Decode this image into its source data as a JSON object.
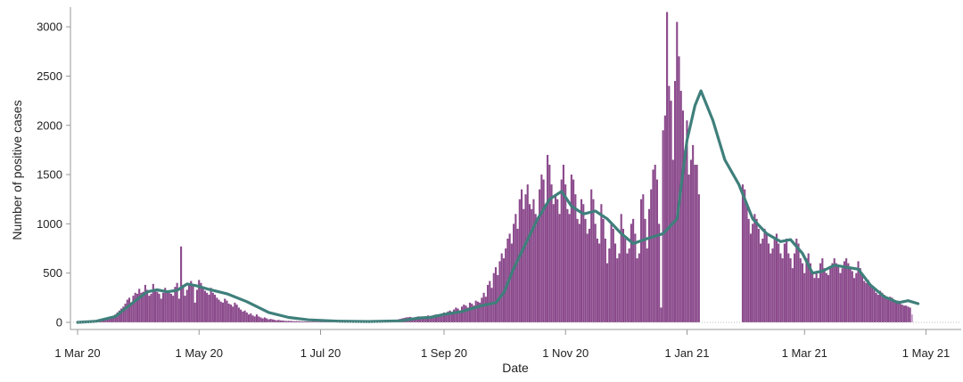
{
  "chart_data": {
    "type": "bar",
    "title": "",
    "xlabel": "Date",
    "ylabel": "Number of positive cases",
    "y_ticks": [
      0,
      500,
      1000,
      1500,
      2000,
      2500,
      3000
    ],
    "y_tick_labels": [
      "0",
      "500",
      "1000",
      "1500",
      "2000",
      "2500",
      "3000"
    ],
    "ylim": [
      0,
      3200
    ],
    "x_ticks": [
      "2020-03-01",
      "2020-05-01",
      "2020-07-01",
      "2020-09-01",
      "2020-11-01",
      "2021-01-01",
      "2021-03-01",
      "2021-05-01"
    ],
    "x_tick_labels": [
      "1 Mar 20",
      "1 May 20",
      "1 Jul 20",
      "1 Sep 20",
      "1 Nov 20",
      "1 Jan 21",
      "1 Mar 21",
      "1 May 21"
    ],
    "xlim": [
      "2020-03-01",
      "2021-05-03"
    ],
    "grid": false,
    "colors": {
      "bars": "#8b4a8c",
      "last_bar": "#c9a3cf",
      "moving_average": "#3f7f7b"
    },
    "daily_cases": [
      {
        "start": "2020-03-01",
        "values": [
          0,
          1,
          2,
          2,
          3,
          4,
          6,
          8,
          10,
          12,
          15,
          18,
          20,
          25,
          30,
          35,
          40,
          45,
          60,
          80,
          100,
          120,
          140,
          160,
          190,
          230,
          250,
          200,
          270,
          300,
          290,
          340,
          300,
          310,
          380,
          330,
          270,
          290,
          390,
          340,
          310,
          290,
          240,
          300,
          350,
          320,
          300,
          290,
          270,
          360,
          400,
          240,
          770,
          380,
          270,
          330,
          390,
          420,
          380,
          200,
          330,
          430,
          400,
          360,
          320,
          300,
          280,
          350,
          300,
          280,
          250,
          230,
          210,
          200,
          240,
          220,
          190,
          180,
          160,
          200,
          180,
          150,
          130,
          110,
          120,
          100,
          80,
          90,
          70,
          60,
          80,
          60,
          50,
          40,
          50,
          40
        ]
      },
      {
        "start": "2020-06-05",
        "values": [
          30,
          35,
          30,
          25,
          20,
          25,
          20,
          18,
          16,
          14,
          15,
          14,
          13,
          12,
          12,
          11,
          10,
          10,
          9,
          9,
          8,
          8,
          8,
          8,
          7,
          7,
          7,
          7,
          6,
          6,
          6,
          6,
          6,
          6,
          6,
          6,
          6,
          6,
          6,
          6,
          6,
          6,
          6,
          6,
          6,
          7,
          7,
          7,
          7,
          8,
          8,
          8,
          8,
          9,
          9,
          10,
          10,
          11,
          12,
          13,
          15,
          17,
          19,
          22,
          25,
          30,
          35,
          40,
          45,
          50,
          52,
          55,
          50,
          48,
          55,
          60,
          50,
          45,
          55,
          60,
          70,
          65,
          60,
          75,
          80,
          70,
          80,
          90,
          100,
          95
        ]
      },
      {
        "start": "2020-09-03",
        "values": [
          110,
          120,
          100,
          130,
          150,
          140,
          120,
          160,
          180,
          170,
          150,
          200,
          190,
          170,
          220,
          210,
          200,
          250,
          300,
          260,
          380,
          420,
          350,
          500,
          560,
          480,
          620,
          700,
          650,
          750,
          850,
          900,
          800,
          1000,
          1100,
          950,
          1250,
          1350,
          1150,
          1300,
          1400,
          1200,
          1150,
          1250,
          1100,
          1050,
          1350,
          1500,
          1450,
          1200,
          1700,
          1600,
          1400,
          1200,
          1300,
          1250,
          1100,
          1450,
          1600,
          1400,
          1150,
          1100,
          1500,
          1450,
          1300,
          1050,
          1000,
          1250,
          1200,
          1050,
          900,
          950,
          1350,
          1250,
          1000,
          850,
          800,
          1200,
          1050,
          850,
          600,
          750,
          1000,
          950,
          800,
          650,
          700,
          1100,
          950,
          850,
          700,
          750,
          1000,
          1050,
          900,
          650,
          700,
          1250,
          1300,
          1050,
          750,
          1150,
          1350,
          1550,
          1600,
          1450,
          1000,
          150,
          1950,
          2100,
          3150,
          2400,
          2250,
          1650,
          2450,
          3050,
          2700,
          2350,
          2150,
          1750,
          2050,
          1500,
          1650,
          1800,
          1600,
          1600,
          1300
        ]
      },
      {
        "start": "2021-01-29",
        "values": [
          1400,
          1350,
          1200,
          1050,
          900,
          1000,
          1100,
          1050,
          950,
          800,
          850,
          950,
          900,
          800,
          700,
          750,
          850,
          900,
          800,
          700,
          650,
          800,
          850,
          700,
          650,
          550,
          700,
          850,
          800,
          650,
          600,
          500,
          650,
          700,
          600,
          500,
          450,
          500,
          450,
          600,
          650,
          550,
          500,
          480,
          550,
          600,
          650,
          600,
          560,
          500,
          550,
          620,
          650,
          600,
          560,
          520,
          450,
          500,
          620,
          550,
          480,
          420,
          400,
          430,
          380,
          350,
          330,
          300,
          280,
          320,
          300,
          280,
          250,
          230,
          260,
          250,
          220,
          200,
          220,
          200,
          180,
          170,
          170,
          160,
          150,
          80
        ]
      }
    ],
    "moving_average": [
      [
        "2020-03-01",
        0
      ],
      [
        "2020-03-10",
        10
      ],
      [
        "2020-03-20",
        60
      ],
      [
        "2020-03-30",
        220
      ],
      [
        "2020-04-05",
        310
      ],
      [
        "2020-04-10",
        330
      ],
      [
        "2020-04-15",
        310
      ],
      [
        "2020-04-20",
        325
      ],
      [
        "2020-04-25",
        390
      ],
      [
        "2020-04-30",
        370
      ],
      [
        "2020-05-05",
        340
      ],
      [
        "2020-05-15",
        290
      ],
      [
        "2020-05-25",
        210
      ],
      [
        "2020-06-05",
        100
      ],
      [
        "2020-06-15",
        50
      ],
      [
        "2020-06-25",
        25
      ],
      [
        "2020-07-10",
        12
      ],
      [
        "2020-07-25",
        8
      ],
      [
        "2020-08-10",
        15
      ],
      [
        "2020-08-20",
        45
      ],
      [
        "2020-08-25",
        50
      ],
      [
        "2020-09-01",
        80
      ],
      [
        "2020-09-10",
        110
      ],
      [
        "2020-09-20",
        170
      ],
      [
        "2020-09-27",
        200
      ],
      [
        "2020-10-01",
        300
      ],
      [
        "2020-10-06",
        550
      ],
      [
        "2020-10-12",
        800
      ],
      [
        "2020-10-18",
        1050
      ],
      [
        "2020-10-24",
        1250
      ],
      [
        "2020-10-30",
        1330
      ],
      [
        "2020-11-04",
        1180
      ],
      [
        "2020-11-10",
        1100
      ],
      [
        "2020-11-16",
        1130
      ],
      [
        "2020-11-22",
        1050
      ],
      [
        "2020-11-29",
        900
      ],
      [
        "2020-12-05",
        800
      ],
      [
        "2020-12-12",
        850
      ],
      [
        "2020-12-20",
        900
      ],
      [
        "2020-12-27",
        1050
      ],
      [
        "2021-01-01",
        1850
      ],
      [
        "2021-01-05",
        2200
      ],
      [
        "2021-01-08",
        2350
      ],
      [
        "2021-01-14",
        2050
      ],
      [
        "2021-01-20",
        1650
      ],
      [
        "2021-01-27",
        1400
      ],
      [
        "2021-02-03",
        1050
      ],
      [
        "2021-02-10",
        900
      ],
      [
        "2021-02-17",
        820
      ],
      [
        "2021-02-22",
        840
      ],
      [
        "2021-02-28",
        700
      ],
      [
        "2021-03-05",
        500
      ],
      [
        "2021-03-10",
        520
      ],
      [
        "2021-03-16",
        580
      ],
      [
        "2021-03-22",
        560
      ],
      [
        "2021-03-28",
        540
      ],
      [
        "2021-04-03",
        380
      ],
      [
        "2021-04-10",
        260
      ],
      [
        "2021-04-17",
        200
      ],
      [
        "2021-04-22",
        220
      ],
      [
        "2021-04-27",
        190
      ]
    ]
  }
}
